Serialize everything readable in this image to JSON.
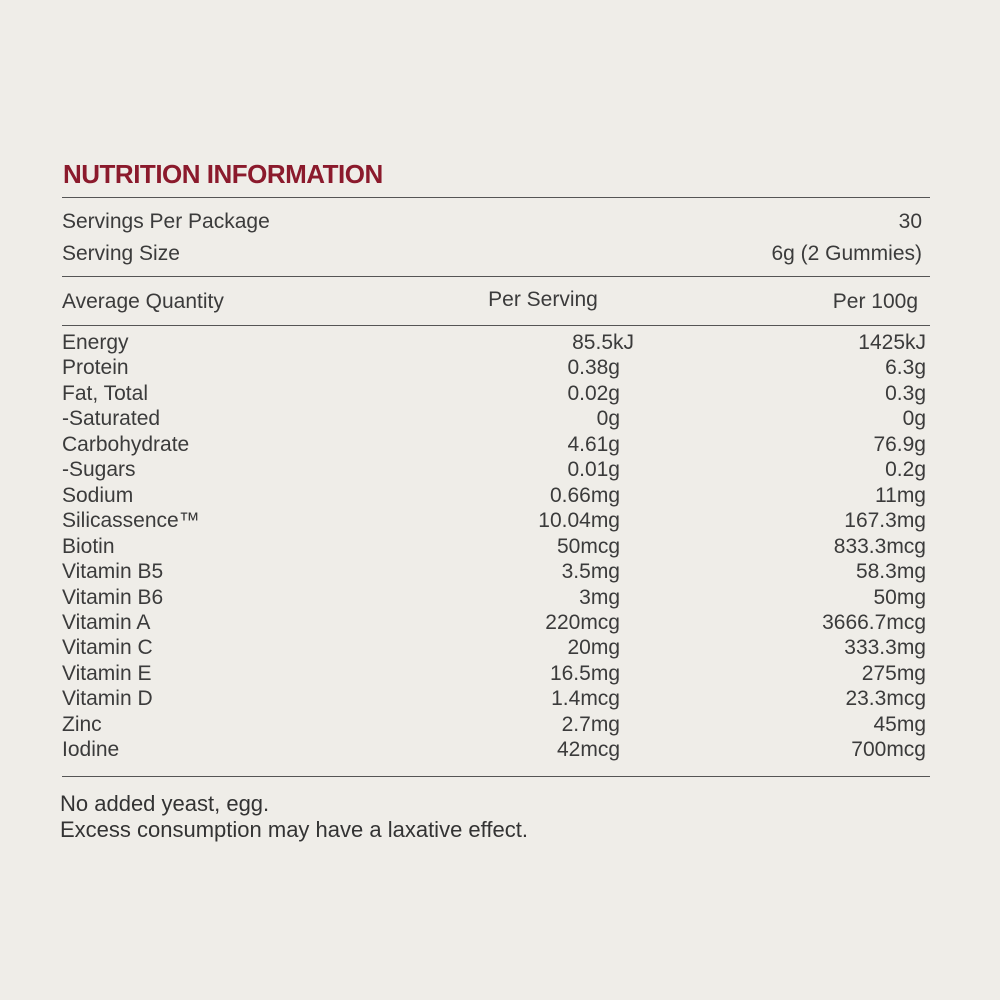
{
  "title": "NUTRITION INFORMATION",
  "servings": [
    [
      "Servings Per Package",
      "30"
    ],
    [
      "Serving Size",
      "6g (2 Gummies)"
    ]
  ],
  "table": {
    "header": [
      "Average Quantity",
      "Per Serving",
      "Per 100g"
    ],
    "rows": [
      [
        "Energy",
        "85.5kJ",
        "1425kJ"
      ],
      [
        "Protein",
        "0.38g",
        "6.3g"
      ],
      [
        "Fat, Total",
        "0.02g",
        "0.3g"
      ],
      [
        "-Saturated",
        "0g",
        "0g"
      ],
      [
        "Carbohydrate",
        "4.61g",
        "76.9g"
      ],
      [
        "-Sugars",
        "0.01g",
        "0.2g"
      ],
      [
        "Sodium",
        "0.66mg",
        "11mg"
      ],
      [
        "Silicassence™",
        "10.04mg",
        "167.3mg"
      ],
      [
        "Biotin",
        "50mcg",
        "833.3mcg"
      ],
      [
        "Vitamin B5",
        "3.5mg",
        "58.3mg"
      ],
      [
        "Vitamin B6",
        "3mg",
        "50mg"
      ],
      [
        "Vitamin A",
        "220mcg",
        "3666.7mcg"
      ],
      [
        "Vitamin C",
        "20mg",
        "333.3mg"
      ],
      [
        "Vitamin E",
        "16.5mg",
        "275mg"
      ],
      [
        "Vitamin D",
        "1.4mcg",
        "23.3mcg"
      ],
      [
        "Zinc",
        "2.7mg",
        "45mg"
      ],
      [
        "Iodine",
        "42mcg",
        "700mcg"
      ]
    ]
  },
  "notes": [
    "No added yeast, egg.",
    "Excess consumption may have a laxative effect."
  ]
}
